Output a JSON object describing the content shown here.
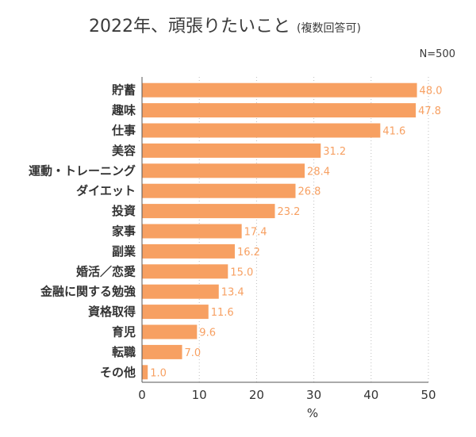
{
  "chart_data": {
    "type": "bar",
    "orientation": "horizontal",
    "title": "2022年、頑張りたいこと",
    "subtitle": "(複数回答可)",
    "note": "N=500",
    "xlabel": "%",
    "ylabel": "",
    "xlim": [
      0,
      50
    ],
    "xticks": [
      "0",
      "10",
      "20",
      "30",
      "40",
      "50"
    ],
    "grid": "vertical dotted",
    "categories": [
      "貯蓄",
      "趣味",
      "仕事",
      "美容",
      "運動・トレーニング",
      "ダイエット",
      "投資",
      "家事",
      "副業",
      "婚活／恋愛",
      "金融に関する勉強",
      "資格取得",
      "育児",
      "転職",
      "その他"
    ],
    "values": [
      48.0,
      47.8,
      41.6,
      31.2,
      28.4,
      26.8,
      23.2,
      17.4,
      16.2,
      15.0,
      13.4,
      11.6,
      9.6,
      7.0,
      1.0
    ],
    "value_labels": [
      "48.0",
      "47.8",
      "41.6",
      "31.2",
      "28.4",
      "26.8",
      "23.2",
      "17.4",
      "16.2",
      "15.0",
      "13.4",
      "11.6",
      "9.6",
      "7.0",
      "1.0"
    ],
    "colors": {
      "bar": "#F7A062",
      "bar_label": "#F7A062",
      "grid": "#bfbfbf",
      "axis": "#555555"
    }
  }
}
